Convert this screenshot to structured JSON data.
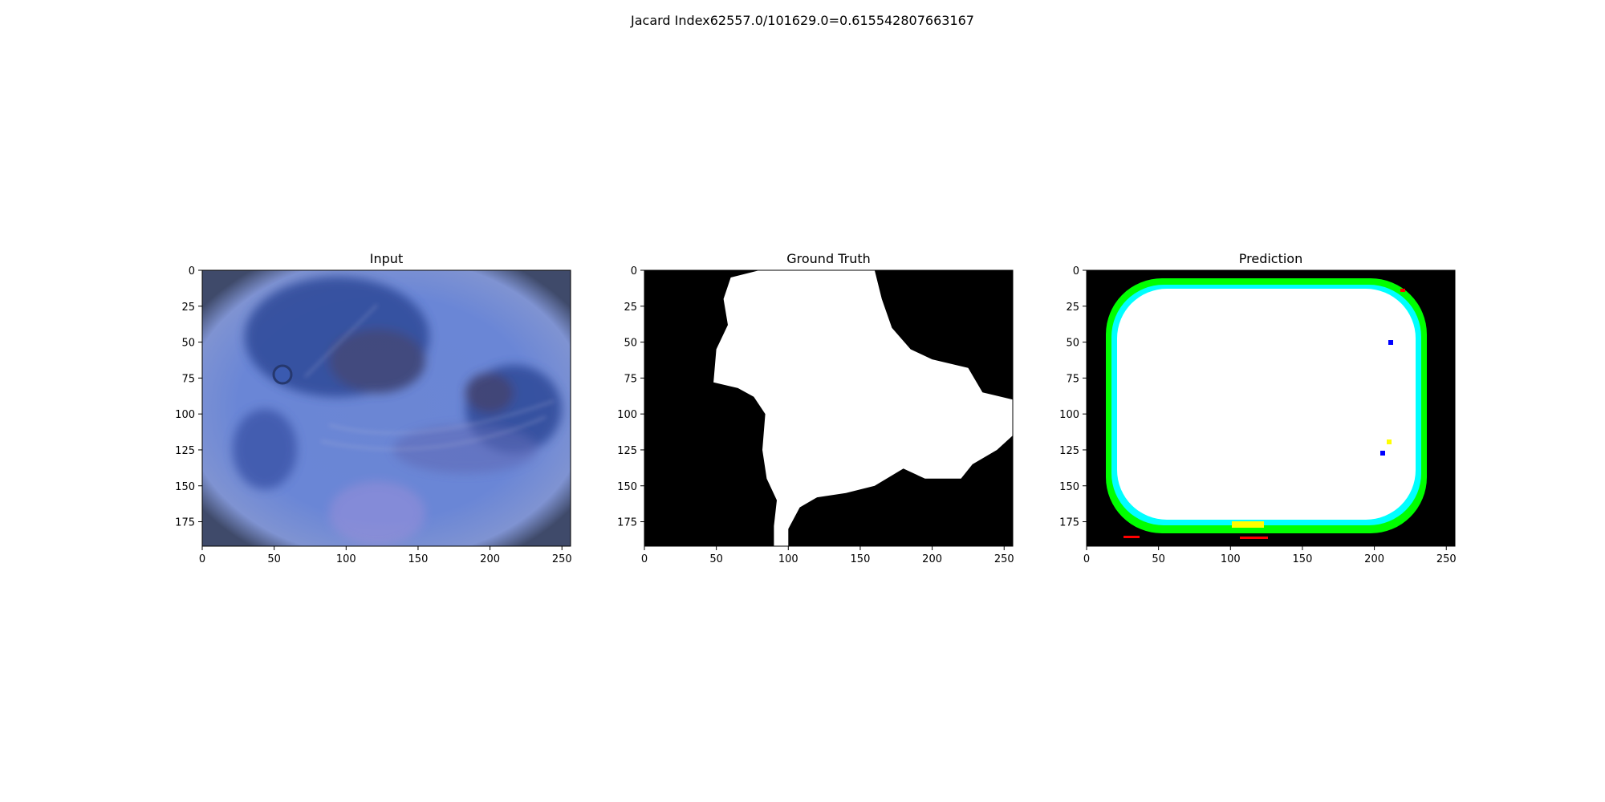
{
  "figure": {
    "suptitle": "Jacard Index62557.0/101629.0=0.615542807663167"
  },
  "chart_data": [
    {
      "type": "image",
      "title": "Input",
      "xticks": [
        0,
        50,
        100,
        150,
        200,
        250
      ],
      "yticks": [
        0,
        25,
        50,
        75,
        100,
        125,
        150,
        175
      ],
      "xlim": [
        0,
        256
      ],
      "ylim": [
        192,
        0
      ]
    },
    {
      "type": "image",
      "title": "Ground Truth",
      "xticks": [
        0,
        50,
        100,
        150,
        200,
        250
      ],
      "yticks": [
        0,
        25,
        50,
        75,
        100,
        125,
        150,
        175
      ],
      "xlim": [
        0,
        256
      ],
      "ylim": [
        192,
        0
      ],
      "mask_outline": [
        [
          80,
          0
        ],
        [
          160,
          0
        ],
        [
          165,
          20
        ],
        [
          172,
          40
        ],
        [
          185,
          55
        ],
        [
          200,
          62
        ],
        [
          225,
          68
        ],
        [
          235,
          85
        ],
        [
          256,
          90
        ],
        [
          256,
          115
        ],
        [
          245,
          125
        ],
        [
          228,
          135
        ],
        [
          220,
          145
        ],
        [
          195,
          145
        ],
        [
          180,
          138
        ],
        [
          160,
          150
        ],
        [
          140,
          155
        ],
        [
          120,
          158
        ],
        [
          108,
          165
        ],
        [
          100,
          180
        ],
        [
          100,
          192
        ],
        [
          90,
          192
        ],
        [
          90,
          178
        ],
        [
          92,
          160
        ],
        [
          85,
          145
        ],
        [
          82,
          125
        ],
        [
          84,
          100
        ],
        [
          76,
          88
        ],
        [
          65,
          82
        ],
        [
          48,
          78
        ],
        [
          50,
          55
        ],
        [
          58,
          38
        ],
        [
          55,
          20
        ],
        [
          60,
          5
        ]
      ]
    },
    {
      "type": "image",
      "title": "Prediction",
      "xticks": [
        0,
        50,
        100,
        150,
        200,
        250
      ],
      "yticks": [
        0,
        25,
        50,
        75,
        100,
        125,
        150,
        175
      ],
      "xlim": [
        0,
        256
      ],
      "ylim": [
        192,
        0
      ],
      "colors": {
        "background": "#000000",
        "core": "#ffffff",
        "ring1": "#00ffff",
        "ring2": "#00ff00",
        "accent_red": "#ff0000",
        "accent_yellow": "#ffff00",
        "accent_blue": "#0000ff"
      }
    }
  ]
}
